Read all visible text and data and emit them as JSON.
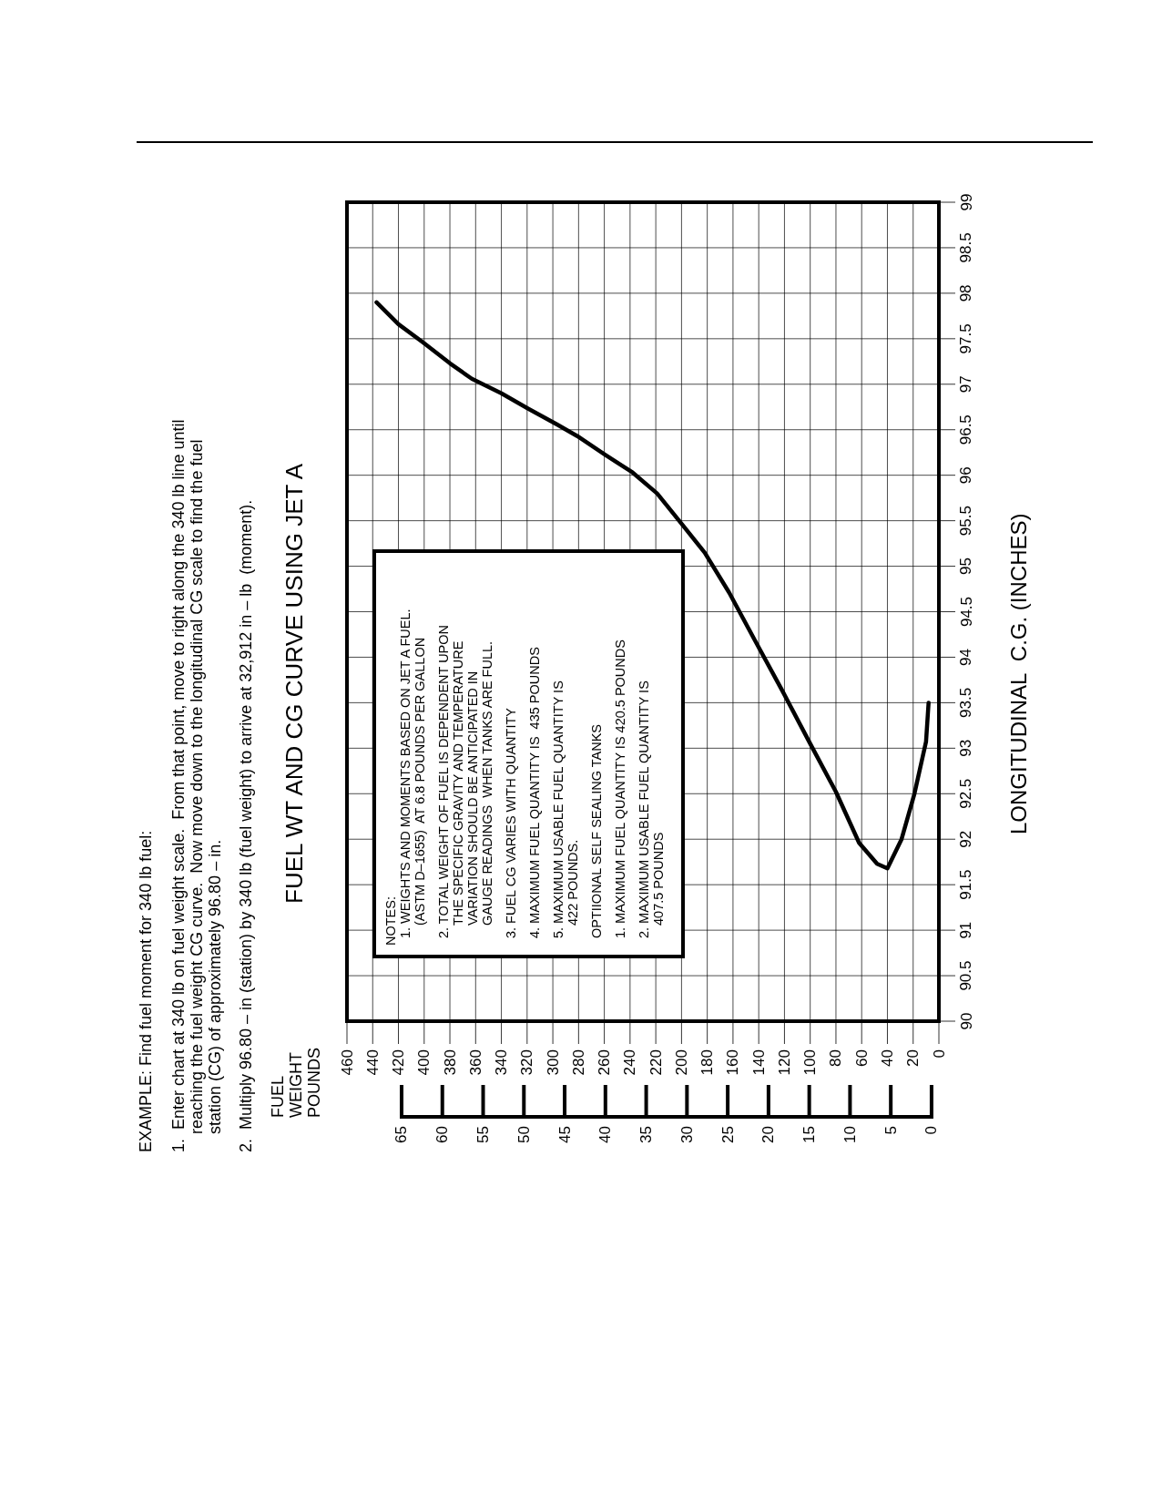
{
  "chart_data": {
    "type": "line",
    "title": "FUEL WT AND CG CURVE USING JET A",
    "ylabel": "LONGITUDINAL  C.G. (INCHES)",
    "x": [
      8,
      10,
      19,
      29,
      40,
      48,
      62,
      80,
      100,
      122,
      142,
      163,
      182,
      199,
      219,
      238,
      260,
      281,
      297,
      319,
      340,
      363,
      380,
      401,
      420,
      437
    ],
    "values": [
      93.5,
      93.07,
      92.5,
      92.0,
      91.68,
      91.73,
      91.96,
      92.52,
      93.05,
      93.64,
      94.16,
      94.71,
      95.15,
      95.45,
      95.8,
      96.03,
      96.23,
      96.43,
      96.56,
      96.73,
      96.9,
      97.06,
      97.23,
      97.46,
      97.66,
      97.9
    ],
    "color": "#000000",
    "marker": "none",
    "line_style": "solid",
    "grid": true,
    "xlim": [
      460,
      0
    ],
    "xticks": [
      460,
      440,
      420,
      400,
      380,
      360,
      340,
      320,
      300,
      280,
      260,
      240,
      220,
      200,
      180,
      160,
      140,
      120,
      100,
      80,
      60,
      40,
      20,
      0
    ],
    "ylim": [
      90,
      99
    ],
    "yticks": [
      90,
      90.5,
      91,
      91.5,
      92,
      92.5,
      93,
      93.5,
      94,
      94.5,
      95,
      95.5,
      96,
      96.5,
      97,
      97.5,
      98,
      98.5,
      99
    ],
    "x2lim": [
      71.7,
      -0.9
    ],
    "x2ticks": [
      65,
      60,
      55,
      50,
      45,
      40,
      35,
      30,
      25,
      20,
      15,
      10,
      5,
      0
    ],
    "annotations": [
      "EXAMPLE: Find fuel moment for 340 lb fuel:",
      "1.  Enter chart at 340 lb on fuel weight scale.  From that point, move to right along the 340 lb line until\nreaching the fuel weight CG curve.  Now move down to the longitudinal CG scale to find the fuel\nstation (CG) of approximately 96.80 – in.",
      "2.  Multiply 96.80 – in (station) by 340 lb (fuel weight) to arrive at 32,912 in – lb  (moment).",
      "FUEL WEIGHT POUNDS",
      "NOTES:",
      "1. WEIGHTS AND MOMENTS BASED ON JET A FUEL.\n(ASTM D–1655)  AT 6.8 POUNDS PER GALLON",
      "2. TOTAL WEIGHT OF FUEL IS DEPENDENT UPON\nTHE SPECIFIC GRAVITY AND TEMPERATURE\nVARIATION SHOULD BE ANTICIPATED IN\nGAUGE READINGS  WHEN TANKS ARE FULL.",
      "3. FUEL CG VARIES WITH QUANTITY",
      "4. MAXIMUM FUEL QUANTITY IS  435 POUNDS",
      "5. MAXIMUM USABLE FUEL QUANTITY IS\n422 POUNDS.",
      "OPTIIONAL SELF SEALING TANKS",
      "1. MAXIMUM FUEL QUANTITY IS 420.5 POUNDS",
      "2. MAXIMUM USABLE FUEL QUANTITY IS\n407.5 POUNDS"
    ]
  }
}
